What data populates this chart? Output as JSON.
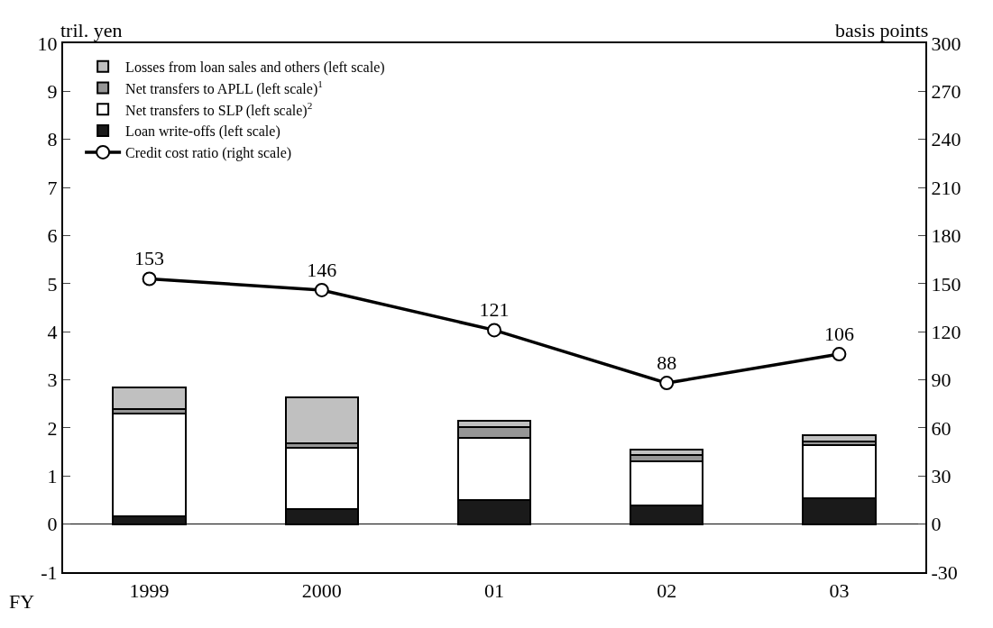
{
  "chart_data": {
    "type": "bar",
    "stacked": true,
    "categories": [
      "1999",
      "2000",
      "01",
      "02",
      "03"
    ],
    "series": [
      {
        "name": "Loan write-offs (left scale)",
        "color": "#1a1a1a",
        "values": [
          0.16,
          0.32,
          0.5,
          0.39,
          0.53
        ]
      },
      {
        "name": "Net transfers to SLP (left scale)$^{2}$",
        "color": "#ffffff",
        "values": [
          2.14,
          1.26,
          1.3,
          0.91,
          1.11
        ]
      },
      {
        "name": "Net transfers to APLL (left scale)$^{1}$",
        "color": "#969696",
        "values": [
          0.09,
          0.1,
          0.22,
          0.14,
          0.07
        ]
      },
      {
        "name": "Losses from loan sales and others (left scale)",
        "color": "#c0c0c0",
        "values": [
          0.45,
          0.95,
          0.12,
          0.11,
          0.13
        ]
      },
      {
        "name": "Credit cost ratio (right scale)",
        "type": "line",
        "axis": "y2",
        "color": "#000000",
        "marker": "circle",
        "data_labels": true,
        "values": [
          153,
          146,
          121,
          88,
          106
        ]
      }
    ],
    "ylabel": "tril. yen",
    "y2label": "basis points",
    "ylim": [
      -1,
      10
    ],
    "yticks": [
      -1,
      0,
      1,
      2,
      3,
      4,
      5,
      6,
      7,
      8,
      9,
      10
    ],
    "y2lim": [
      -30,
      300
    ],
    "y2ticks": [
      -30,
      0,
      30,
      60,
      90,
      120,
      150,
      180,
      210,
      240,
      270,
      300
    ],
    "annotations": [
      "FY"
    ],
    "ref_lines": [
      {
        "axis": "y",
        "value": 0,
        "color": "#000000",
        "line_style": "solid"
      }
    ],
    "legend": "top left",
    "grid": false
  }
}
